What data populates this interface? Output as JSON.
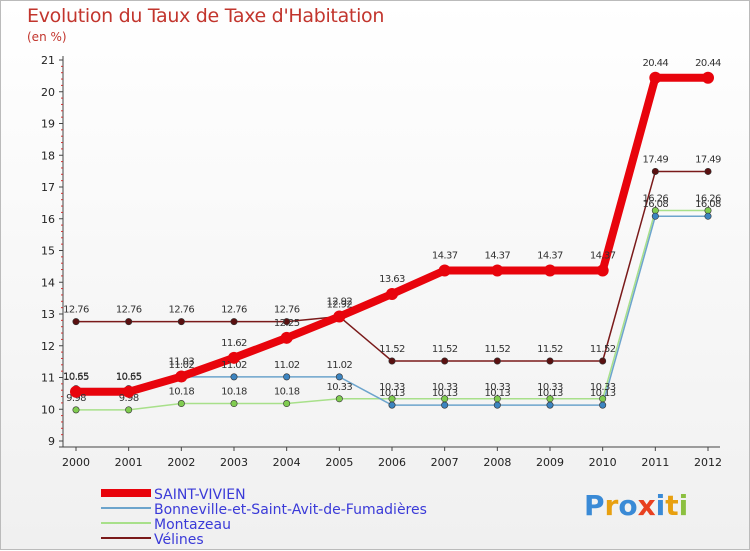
{
  "title": "Evolution du Taux de Taxe d'Habitation",
  "subtitle": "(en %)",
  "logo_text": "Proxiti",
  "chart_data": {
    "type": "line",
    "x": [
      "2000",
      "2001",
      "2002",
      "2003",
      "2004",
      "2005",
      "2006",
      "2007",
      "2008",
      "2009",
      "2010",
      "2011",
      "2012"
    ],
    "ylim": [
      9,
      21
    ],
    "yticks": [
      "9",
      "10",
      "11",
      "12",
      "13",
      "14",
      "15",
      "16",
      "17",
      "18",
      "19",
      "20",
      "21"
    ],
    "grid": false,
    "legend_position": "bottom-left",
    "series": [
      {
        "name": "Vélines",
        "color": "#7a1a1a",
        "marker_color": "#5a1010",
        "values": [
          12.76,
          12.76,
          12.76,
          12.76,
          12.76,
          12.92,
          11.52,
          11.52,
          11.52,
          11.52,
          11.52,
          17.49,
          17.49
        ],
        "labels": [
          "12.76",
          "12.76",
          "12.76",
          "12.76",
          "12.76",
          "12.92",
          "11.52",
          "11.52",
          "11.52",
          "11.52",
          "11.52",
          "17.49",
          "17.49"
        ]
      },
      {
        "name": "Montazeau",
        "color": "#a8e08a",
        "marker_color": "#80cc50",
        "values": [
          9.98,
          9.98,
          10.18,
          10.18,
          10.18,
          10.33,
          10.33,
          10.33,
          10.33,
          10.33,
          10.33,
          16.26,
          16.26
        ],
        "labels": [
          "9.98",
          "9.98",
          "10.18",
          "10.18",
          "10.18",
          "10.33",
          "10.33",
          "10.33",
          "10.33",
          "10.33",
          "10.33",
          "16.26",
          "16.26"
        ]
      },
      {
        "name": "Bonneville-et-Saint-Avit-de-Fumadières",
        "color": "#6ca4cc",
        "marker_color": "#3c84c0",
        "values": [
          10.65,
          10.65,
          11.02,
          11.02,
          11.02,
          11.02,
          10.13,
          10.13,
          10.13,
          10.13,
          10.13,
          16.08,
          16.08
        ],
        "labels": [
          "10.65",
          "10.65",
          "11.02",
          "11.02",
          "11.02",
          "11.02",
          "10.13",
          "10.13",
          "10.13",
          "10.13",
          "10.13",
          "16.08",
          "16.08"
        ]
      },
      {
        "name": "SAINT-VIVIEN",
        "color": "#e8040c",
        "marker_color": "#e8040c",
        "values": [
          10.55,
          10.55,
          11.03,
          11.62,
          12.25,
          12.92,
          13.63,
          14.37,
          14.37,
          14.37,
          14.37,
          20.44,
          20.44
        ],
        "labels": [
          "10.55",
          "10.55",
          "11.03",
          "11.62",
          "12.25",
          "12.92",
          "13.63",
          "14.37",
          "14.37",
          "14.37",
          "14.37",
          "20.44",
          "20.44"
        ]
      }
    ]
  }
}
